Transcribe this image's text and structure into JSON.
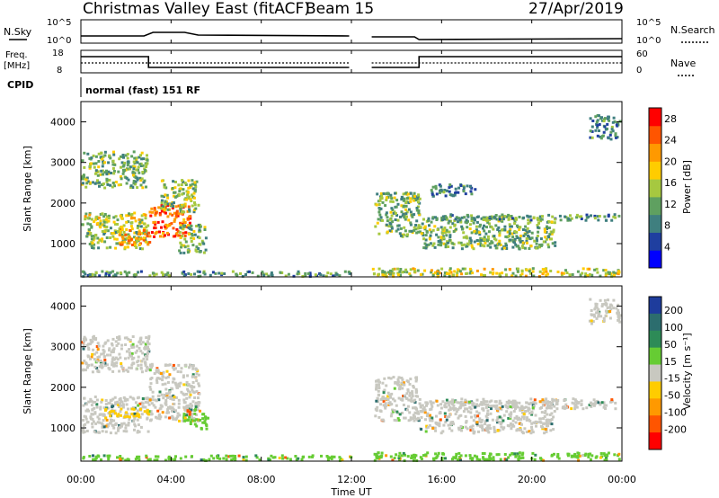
{
  "header": {
    "station": "Christmas Valley East (fitACF)",
    "beam": "Beam 15",
    "date": "27/Apr/2019"
  },
  "status_panel": {
    "nsky_label": "N.Sky",
    "nsky_ticks": [
      "10^5",
      "10^0"
    ],
    "nsearch_label": "N.Search",
    "nsearch_ticks": [
      "10^5",
      "10^0"
    ],
    "freq_label": "Freq.",
    "freq_unit": "[MHz]",
    "freq_ticks": [
      "18",
      "8"
    ],
    "nave_label": "Nave",
    "nave_ticks": [
      "60",
      "0"
    ],
    "cpid_label": "CPID",
    "cpid_text": "normal (fast) 151 RF"
  },
  "colors": {
    "power": [
      "#0000ff",
      "#1f3fa0",
      "#3f7f7f",
      "#5fa060",
      "#a6c840",
      "#ffcc00",
      "#ff9900",
      "#ff5500",
      "#ff0000"
    ],
    "velocity_pos": [
      "#1e3c9c",
      "#2c6d6e",
      "#2d8b57",
      "#66cc33"
    ],
    "velocity_neg": [
      "#ffcc00",
      "#ff9900",
      "#ff5500",
      "#ff0000"
    ],
    "ground_scatter": "#c8c8c0"
  },
  "chart_data": [
    {
      "type": "heatmap",
      "name": "power",
      "ylabel": "Slant Range [km]",
      "yticks": [
        1000,
        2000,
        3000,
        4000
      ],
      "ylim": [
        180,
        4500
      ],
      "xlim": [
        0,
        24
      ],
      "colorbar_label": "Power [dB]",
      "colorbar_ticks": [
        4,
        8,
        12,
        16,
        20,
        24,
        28
      ],
      "colorbar_range": [
        0,
        30
      ],
      "regions": [
        {
          "t0": 0.0,
          "t1": 2.9,
          "r0": 2400,
          "r1": 3300,
          "level": 12
        },
        {
          "t0": 0.0,
          "t1": 3.0,
          "r0": 1500,
          "r1": 1800,
          "level": 16
        },
        {
          "t0": 0.2,
          "t1": 3.0,
          "r0": 900,
          "r1": 1500,
          "level": 14
        },
        {
          "t0": 1.5,
          "t1": 3.0,
          "r0": 1000,
          "r1": 1400,
          "level": 22
        },
        {
          "t0": 3.0,
          "t1": 4.8,
          "r0": 1200,
          "r1": 2000,
          "level": 26
        },
        {
          "t0": 3.5,
          "t1": 5.2,
          "r0": 1800,
          "r1": 2600,
          "level": 14
        },
        {
          "t0": 4.3,
          "t1": 5.5,
          "r0": 800,
          "r1": 1500,
          "level": 12
        },
        {
          "t0": 13.0,
          "t1": 15.0,
          "r0": 1200,
          "r1": 2300,
          "level": 12
        },
        {
          "t0": 15.0,
          "t1": 21.0,
          "r0": 900,
          "r1": 1700,
          "level": 12
        },
        {
          "t0": 16.0,
          "t1": 24.0,
          "r0": 1600,
          "r1": 1750,
          "level": 10
        },
        {
          "t0": 15.5,
          "t1": 17.5,
          "r0": 2200,
          "r1": 2500,
          "level": 8
        },
        {
          "t0": 22.5,
          "t1": 24.0,
          "r0": 3600,
          "r1": 4200,
          "level": 8
        },
        {
          "t0": 0.0,
          "t1": 12.0,
          "r0": 180,
          "r1": 350,
          "level": 10
        },
        {
          "t0": 12.9,
          "t1": 24.0,
          "r0": 180,
          "r1": 420,
          "level": 16
        }
      ]
    },
    {
      "type": "heatmap",
      "name": "velocity",
      "ylabel": "Slant Range [km]",
      "xlabel": "Time UT",
      "yticks": [
        1000,
        2000,
        3000,
        4000
      ],
      "ylim": [
        180,
        4500
      ],
      "xlim": [
        0,
        24
      ],
      "xticks": [
        "00:00",
        "04:00",
        "08:00",
        "12:00",
        "16:00",
        "20:00",
        "00:00"
      ],
      "colorbar_label": "Velocity [m s⁻¹]",
      "colorbar_ticks": [
        200,
        100,
        50,
        15,
        -15,
        -50,
        -100,
        -200
      ],
      "regions": [
        {
          "t0": 0.0,
          "t1": 3.0,
          "r0": 2400,
          "r1": 3300,
          "level": 0
        },
        {
          "t0": 0.0,
          "t1": 3.0,
          "r0": 900,
          "r1": 1800,
          "level": 0
        },
        {
          "t0": 3.0,
          "t1": 5.2,
          "r0": 1200,
          "r1": 2600,
          "level": 0
        },
        {
          "t0": 1.0,
          "t1": 3.0,
          "r0": 1300,
          "r1": 1500,
          "level": -30
        },
        {
          "t0": 4.5,
          "t1": 5.6,
          "r0": 1000,
          "r1": 1500,
          "level": 40
        },
        {
          "t0": 13.0,
          "t1": 15.0,
          "r0": 1200,
          "r1": 2300,
          "level": 0
        },
        {
          "t0": 15.0,
          "t1": 21.0,
          "r0": 900,
          "r1": 1700,
          "level": 0
        },
        {
          "t0": 16.0,
          "t1": 24.0,
          "r0": 1500,
          "r1": 1750,
          "level": 0
        },
        {
          "t0": 22.5,
          "t1": 24.0,
          "r0": 3600,
          "r1": 4200,
          "level": 0
        },
        {
          "t0": 0.0,
          "t1": 12.0,
          "r0": 180,
          "r1": 350,
          "level": 40
        },
        {
          "t0": 12.9,
          "t1": 24.0,
          "r0": 180,
          "r1": 420,
          "level": 35
        }
      ]
    }
  ]
}
